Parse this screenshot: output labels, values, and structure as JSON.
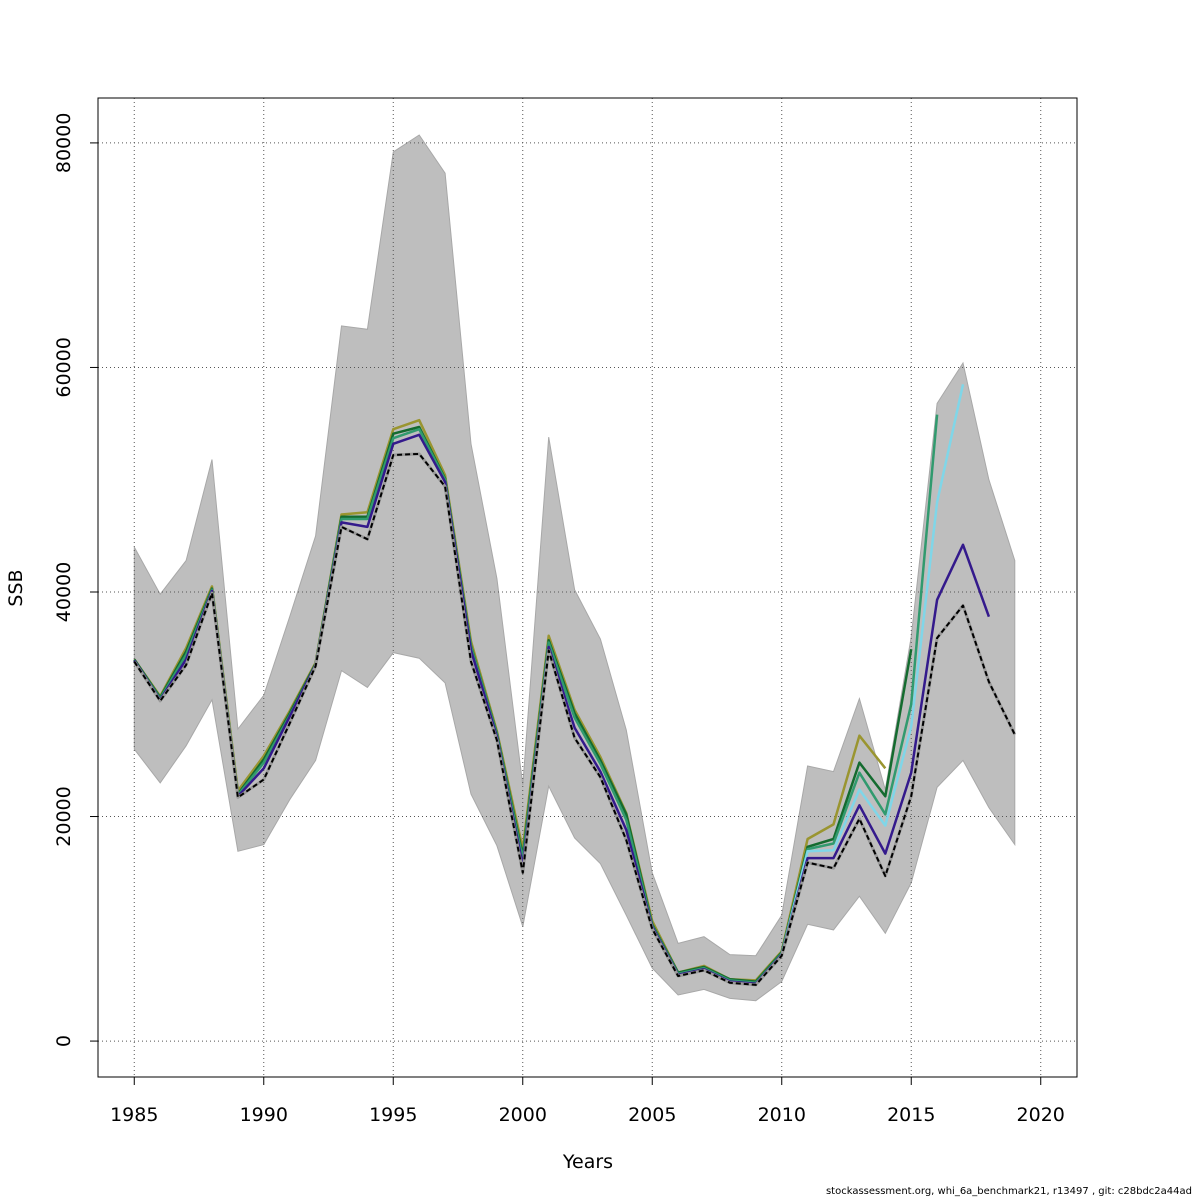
{
  "chart_data": {
    "type": "line",
    "xlabel": "Years",
    "ylabel": "SSB",
    "xlim": [
      1983.6,
      2021.4
    ],
    "ylim": [
      -3200,
      84000
    ],
    "x_ticks": [
      1985,
      1990,
      1995,
      2000,
      2005,
      2010,
      2015,
      2020
    ],
    "y_ticks": [
      0,
      20000,
      40000,
      60000,
      80000
    ],
    "grid": true,
    "confidence_band": {
      "color": "#bebebe",
      "x": [
        1985,
        1986,
        1987,
        1988,
        1989,
        1990,
        1991,
        1992,
        1993,
        1994,
        1995,
        1996,
        1997,
        1998,
        1999,
        2000,
        2001,
        2002,
        2003,
        2004,
        2005,
        2006,
        2007,
        2008,
        2009,
        2010,
        2011,
        2012,
        2013,
        2014,
        2015,
        2016,
        2017,
        2018,
        2019
      ],
      "upper": [
        44000,
        39800,
        42800,
        51800,
        27800,
        30800,
        37800,
        45000,
        63700,
        63400,
        79200,
        80700,
        77300,
        53200,
        41200,
        22800,
        53800,
        40200,
        35800,
        27700,
        15000,
        8700,
        9300,
        7700,
        7600,
        11200,
        24500,
        24000,
        30500,
        22400,
        36000,
        56800,
        60400,
        50000,
        42800
      ],
      "lower": [
        26000,
        23000,
        26300,
        30400,
        16900,
        17500,
        21500,
        25000,
        33000,
        31500,
        34600,
        34100,
        31900,
        22000,
        17400,
        10200,
        22700,
        18100,
        15800,
        11200,
        6500,
        4100,
        4600,
        3800,
        3600,
        5300,
        10400,
        9900,
        12900,
        9600,
        14100,
        22600,
        25000,
        20800,
        17500
      ]
    },
    "series": [
      {
        "name": "",
        "color": "#000000",
        "style": "dashed-on-grey",
        "x": [
          1985,
          1986,
          1987,
          1988,
          1989,
          1990,
          1991,
          1992,
          1993,
          1994,
          1995,
          1996,
          1997,
          1998,
          1999,
          2000,
          2001,
          2002,
          2003,
          2004,
          2005,
          2006,
          2007,
          2008,
          2009,
          2010,
          2011,
          2012,
          2013,
          2014,
          2015,
          2016,
          2017,
          2018,
          2019
        ],
        "values": [
          33800,
          30300,
          33500,
          39900,
          21700,
          23300,
          28300,
          33400,
          45800,
          44700,
          52200,
          52300,
          49400,
          33800,
          26800,
          15000,
          34800,
          27000,
          23500,
          17900,
          10000,
          5800,
          6300,
          5200,
          5000,
          7600,
          15900,
          15400,
          19800,
          14700,
          21800,
          35900,
          38800,
          32000,
          27300
        ]
      },
      {
        "name": "",
        "color": "#341a8c",
        "x": [
          1985,
          1986,
          1987,
          1988,
          1989,
          1990,
          1991,
          1992,
          1993,
          1994,
          1995,
          1996,
          1997,
          1998,
          1999,
          2000,
          2001,
          2002,
          2003,
          2004,
          2005,
          2006,
          2007,
          2008,
          2009,
          2010,
          2011,
          2012,
          2013,
          2014,
          2015,
          2016,
          2017,
          2018
        ],
        "values": [
          33900,
          30400,
          34000,
          40100,
          21800,
          24300,
          28900,
          33500,
          46200,
          45800,
          53200,
          54000,
          49800,
          34800,
          27100,
          15600,
          35100,
          27900,
          24000,
          18800,
          10200,
          5900,
          6400,
          5300,
          5100,
          7700,
          16300,
          16300,
          21000,
          16700,
          23900,
          39300,
          44200,
          37800
        ]
      },
      {
        "name": "",
        "color": "#80d6e8",
        "x": [
          2010,
          2011,
          2012,
          2013,
          2014,
          2015,
          2016,
          2017
        ],
        "values": [
          7700,
          16900,
          17000,
          22400,
          19200,
          28000,
          48000,
          58500
        ]
      },
      {
        "name": "",
        "color": "#319a6e",
        "x": [
          1985,
          1986,
          1987,
          1988,
          1989,
          1990,
          1991,
          1992,
          1993,
          1994,
          1995,
          1996,
          1997,
          1998,
          1999,
          2000,
          2001,
          2002,
          2003,
          2004,
          2005,
          2006,
          2007,
          2008,
          2009,
          2010,
          2011,
          2012,
          2013,
          2014,
          2015,
          2016
        ],
        "values": [
          33900,
          30500,
          34400,
          40200,
          21900,
          24800,
          29000,
          33500,
          46500,
          46500,
          53700,
          54500,
          50000,
          35100,
          27300,
          16200,
          35500,
          28800,
          24700,
          19700,
          10300,
          6000,
          6500,
          5400,
          5200,
          7800,
          17100,
          17600,
          23900,
          20200,
          30000,
          55800
        ]
      },
      {
        "name": "",
        "color": "#146b2f",
        "x": [
          1985,
          1986,
          1987,
          1988,
          1989,
          1990,
          1991,
          1992,
          1993,
          1994,
          1995,
          1996,
          1997,
          1998,
          1999,
          2000,
          2001,
          2002,
          2003,
          2004,
          2005,
          2006,
          2007,
          2008,
          2009,
          2010,
          2011,
          2012,
          2013,
          2014,
          2015
        ],
        "values": [
          34000,
          30600,
          34700,
          40300,
          22000,
          25100,
          29200,
          33600,
          46700,
          46700,
          54100,
          54700,
          50100,
          35200,
          27400,
          16500,
          35700,
          29200,
          25000,
          20200,
          10400,
          6100,
          6600,
          5500,
          5300,
          7900,
          17300,
          18000,
          24800,
          21800,
          34900
        ]
      },
      {
        "name": "",
        "color": "#9a9530",
        "x": [
          1985,
          1986,
          1987,
          1988,
          1989,
          1990,
          1991,
          1992,
          1993,
          1994,
          1995,
          1996,
          1997,
          1998,
          1999,
          2000,
          2001,
          2002,
          2003,
          2004,
          2005,
          2006,
          2007,
          2008,
          2009,
          2010,
          2011,
          2012,
          2013,
          2014
        ],
        "values": [
          34000,
          30700,
          35000,
          40500,
          22300,
          25400,
          29400,
          33700,
          46900,
          47100,
          54500,
          55300,
          50400,
          35600,
          27600,
          17100,
          36100,
          29500,
          25300,
          20300,
          10700,
          6100,
          6700,
          5500,
          5400,
          8000,
          18000,
          19300,
          27200,
          24300
        ]
      }
    ]
  },
  "footer": "stockassessment.org, whi_6a_benchmark21, r13497 , git: c28bdc2a44ad"
}
